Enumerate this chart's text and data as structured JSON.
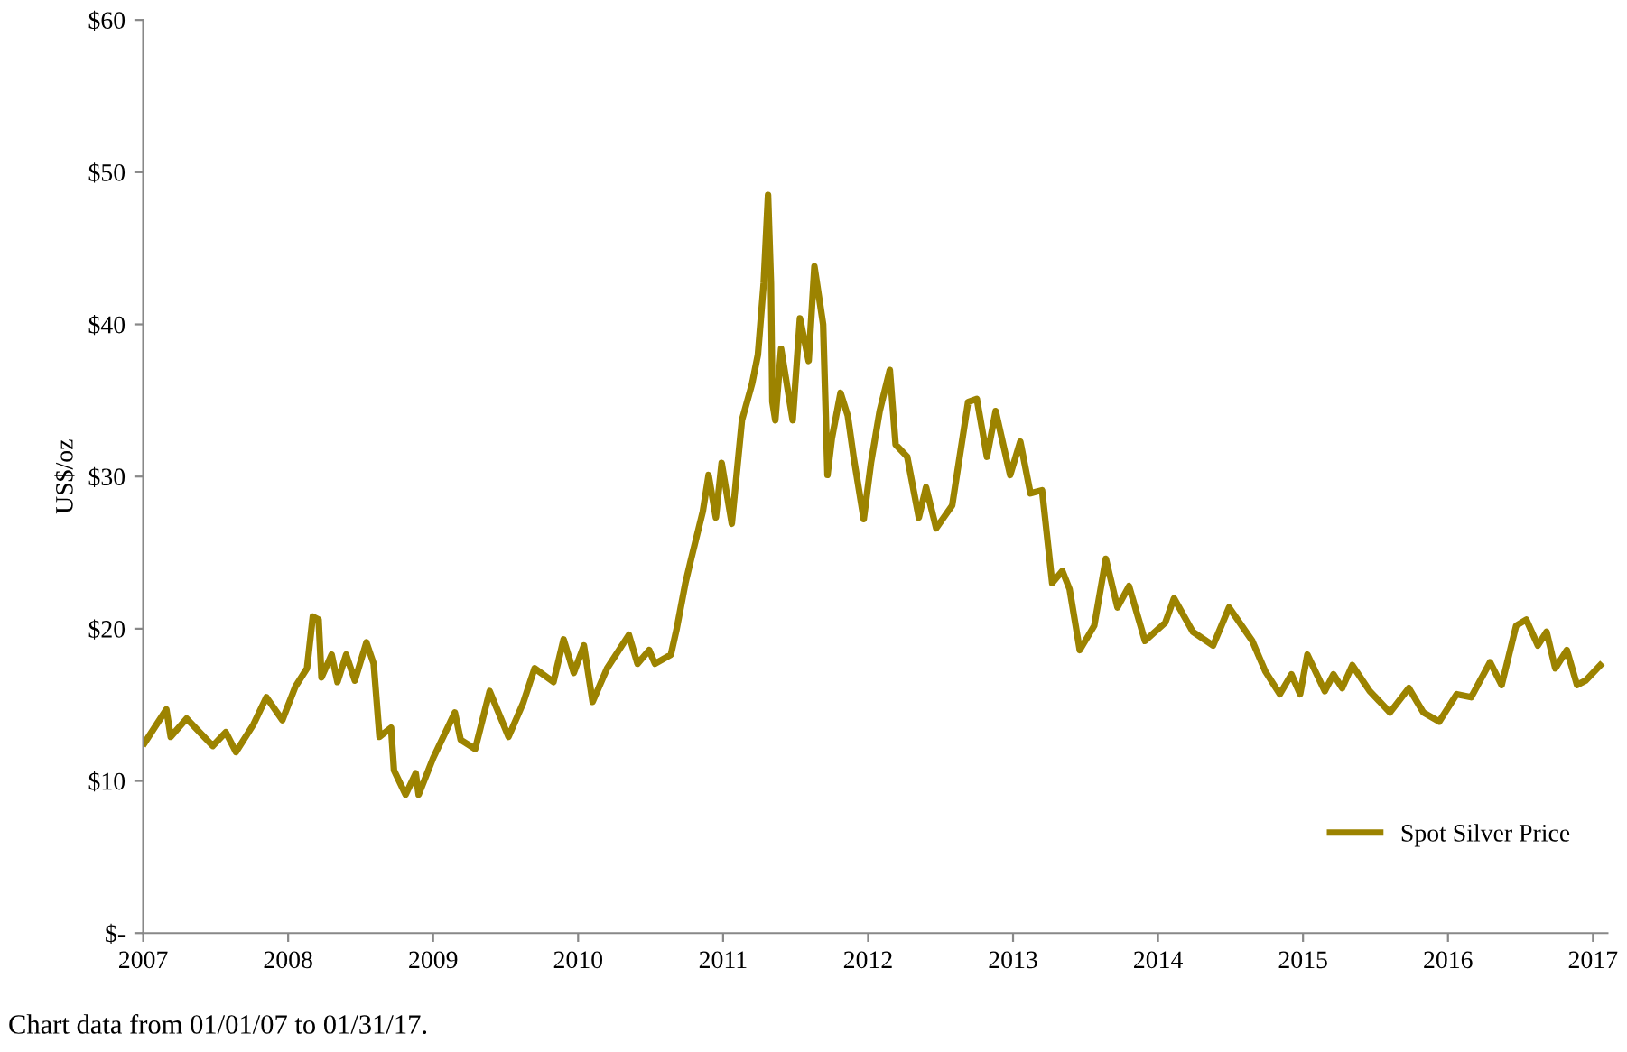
{
  "chart_data": {
    "type": "line",
    "ylabel": "US$/oz",
    "annotations": [
      "Chart data from 01/01/07 to 01/31/17."
    ],
    "xlim": [
      2007,
      2017.1
    ],
    "xticks": [
      2007,
      2008,
      2009,
      2010,
      2011,
      2012,
      2013,
      2014,
      2015,
      2016,
      2017
    ],
    "ylim": [
      0,
      60
    ],
    "yticks": [
      {
        "value": 0,
        "label": "$-"
      },
      {
        "value": 10,
        "label": "$10"
      },
      {
        "value": 20,
        "label": "$20"
      },
      {
        "value": 30,
        "label": "$30"
      },
      {
        "value": 40,
        "label": "$40"
      },
      {
        "value": 50,
        "label": "$50"
      },
      {
        "value": 60,
        "label": "$60"
      }
    ],
    "grid": false,
    "legend": "bottom right",
    "marker": "none",
    "line_style": "solid",
    "series": [
      {
        "name": "Spot Silver Price",
        "color": "#9c8300",
        "x": [
          2007.01,
          2007.16,
          2007.19,
          2007.3,
          2007.41,
          2007.48,
          2007.57,
          2007.64,
          2007.76,
          2007.85,
          2007.96,
          2008.05,
          2008.13,
          2008.17,
          2008.21,
          2008.23,
          2008.3,
          2008.34,
          2008.4,
          2008.46,
          2008.54,
          2008.59,
          2008.63,
          2008.71,
          2008.73,
          2008.81,
          2008.88,
          2008.9,
          2009.0,
          2009.15,
          2009.19,
          2009.29,
          2009.39,
          2009.52,
          2009.62,
          2009.7,
          2009.83,
          2009.9,
          2009.97,
          2010.04,
          2010.1,
          2010.2,
          2010.35,
          2010.41,
          2010.49,
          2010.53,
          2010.64,
          2010.68,
          2010.74,
          2010.78,
          2010.86,
          2010.9,
          2010.95,
          2010.99,
          2011.06,
          2011.13,
          2011.2,
          2011.24,
          2011.28,
          2011.31,
          2011.33,
          2011.34,
          2011.36,
          2011.4,
          2011.48,
          2011.53,
          2011.59,
          2011.63,
          2011.69,
          2011.72,
          2011.75,
          2011.81,
          2011.86,
          2011.9,
          2011.97,
          2012.02,
          2012.08,
          2012.15,
          2012.19,
          2012.27,
          2012.35,
          2012.4,
          2012.47,
          2012.58,
          2012.69,
          2012.75,
          2012.82,
          2012.88,
          2012.98,
          2013.05,
          2013.12,
          2013.2,
          2013.27,
          2013.34,
          2013.39,
          2013.46,
          2013.56,
          2013.64,
          2013.72,
          2013.8,
          2013.91,
          2014.05,
          2014.11,
          2014.24,
          2014.38,
          2014.49,
          2014.65,
          2014.74,
          2014.84,
          2014.92,
          2014.98,
          2015.03,
          2015.15,
          2015.21,
          2015.27,
          2015.34,
          2015.46,
          2015.6,
          2015.73,
          2015.83,
          2015.94,
          2016.06,
          2016.16,
          2016.29,
          2016.37,
          2016.47,
          2016.54,
          2016.62,
          2016.68,
          2016.74,
          2016.82,
          2016.89,
          2016.95,
          2017.05
        ],
        "values": [
          12.5,
          14.7,
          12.9,
          14.1,
          13.0,
          12.3,
          13.2,
          11.9,
          13.7,
          15.5,
          14.0,
          16.2,
          17.4,
          20.8,
          20.6,
          16.8,
          18.3,
          16.5,
          18.3,
          16.6,
          19.1,
          17.7,
          12.9,
          13.5,
          10.7,
          9.1,
          10.5,
          9.1,
          11.5,
          14.5,
          12.7,
          12.1,
          15.9,
          12.9,
          15.1,
          17.4,
          16.5,
          19.3,
          17.1,
          18.9,
          15.2,
          17.4,
          19.6,
          17.7,
          18.6,
          17.7,
          18.3,
          20.0,
          23.0,
          24.6,
          27.7,
          30.1,
          27.3,
          30.9,
          26.9,
          33.7,
          36.1,
          38.0,
          42.7,
          48.5,
          42.7,
          34.9,
          33.7,
          38.4,
          33.7,
          40.4,
          37.6,
          43.8,
          40.0,
          30.1,
          32.5,
          35.5,
          34.0,
          31.3,
          27.2,
          30.9,
          34.3,
          37.0,
          32.1,
          31.3,
          27.3,
          29.3,
          26.6,
          28.1,
          34.9,
          35.1,
          31.3,
          34.3,
          30.1,
          32.3,
          28.9,
          29.1,
          23.0,
          23.8,
          22.6,
          18.6,
          20.2,
          24.6,
          21.4,
          22.8,
          19.2,
          20.4,
          22.0,
          19.8,
          18.9,
          21.4,
          19.2,
          17.2,
          15.7,
          17.0,
          15.7,
          18.3,
          15.9,
          17.0,
          16.1,
          17.6,
          15.9,
          14.5,
          16.1,
          14.5,
          13.9,
          15.7,
          15.5,
          17.8,
          16.3,
          20.2,
          20.6,
          18.9,
          19.8,
          17.4,
          18.6,
          16.3,
          16.6,
          17.6
        ]
      }
    ]
  }
}
